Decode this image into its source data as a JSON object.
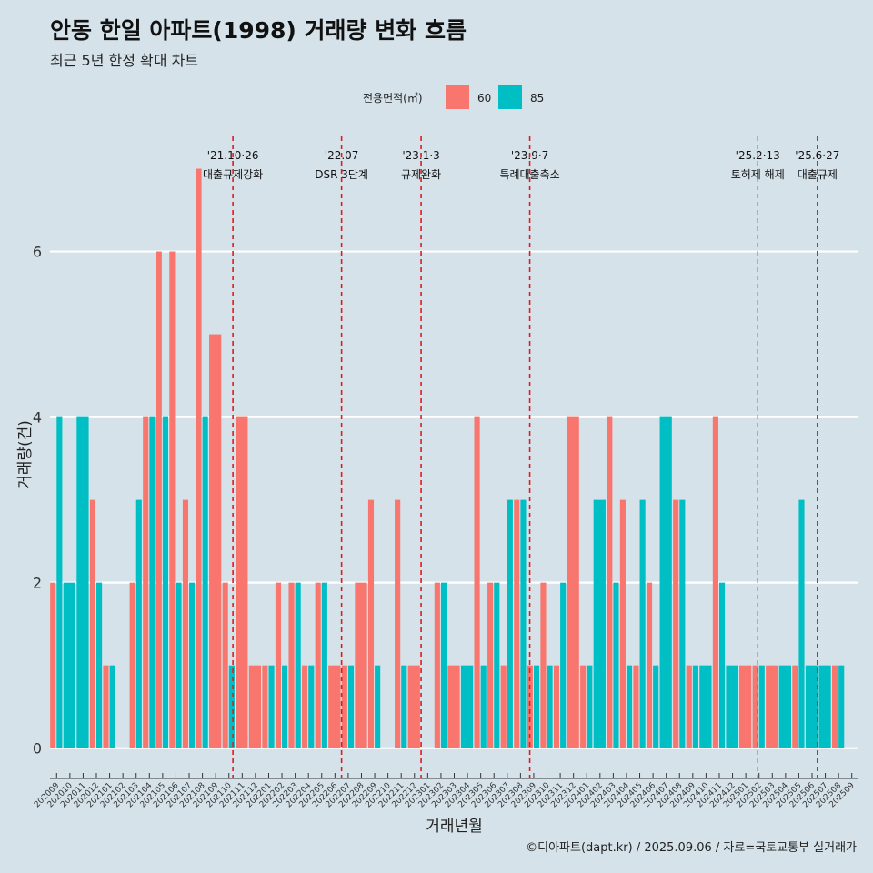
{
  "chart_data": {
    "type": "bar",
    "title": "안동 한일 아파트(1998) 거래량 변화 흐름",
    "subtitle": "최근 5년 한정 확대 차트",
    "xlabel": "거래년월",
    "ylabel": "거래량(건)",
    "ylim": [
      -0.3,
      7.5
    ],
    "yticks": [
      0,
      2,
      4,
      6
    ],
    "legend_title": "전용면적(㎡)",
    "series": [
      {
        "name": "60",
        "color": "#f8766d"
      },
      {
        "name": "85",
        "color": "#00bfc4"
      }
    ],
    "months": [
      "202009",
      "202010",
      "202011",
      "202012",
      "202101",
      "202102",
      "202103",
      "202104",
      "202105",
      "202106",
      "202107",
      "202108",
      "202109",
      "202110",
      "202111",
      "202112",
      "202201",
      "202202",
      "202203",
      "202204",
      "202205",
      "202206",
      "202207",
      "202208",
      "202209",
      "202210",
      "202211",
      "202212",
      "202301",
      "202302",
      "202303",
      "202304",
      "202305",
      "202306",
      "202307",
      "202308",
      "202309",
      "202310",
      "202311",
      "202312",
      "202401",
      "202402",
      "202403",
      "202404",
      "202405",
      "202406",
      "202407",
      "202408",
      "202409",
      "202410",
      "202411",
      "202412",
      "202501",
      "202502",
      "202503",
      "202504",
      "202505",
      "202506",
      "202507",
      "202508",
      "202509"
    ],
    "data": [
      {
        "month": "202009",
        "60": 2,
        "85": 4
      },
      {
        "month": "202010",
        "60": 0,
        "85": 2
      },
      {
        "month": "202011",
        "60": 0,
        "85": 4
      },
      {
        "month": "202012",
        "60": 3,
        "85": 2
      },
      {
        "month": "202101",
        "60": 1,
        "85": 1
      },
      {
        "month": "202103",
        "60": 2,
        "85": 3
      },
      {
        "month": "202104",
        "60": 4,
        "85": 4
      },
      {
        "month": "202105",
        "60": 6,
        "85": 4
      },
      {
        "month": "202106",
        "60": 6,
        "85": 2
      },
      {
        "month": "202107",
        "60": 3,
        "85": 2
      },
      {
        "month": "202108",
        "60": 7,
        "85": 4
      },
      {
        "month": "202109",
        "60": 5,
        "85": 0
      },
      {
        "month": "202110",
        "60": 2,
        "85": 1
      },
      {
        "month": "202111",
        "60": 4,
        "85": 0
      },
      {
        "month": "202112",
        "60": 1,
        "85": 0
      },
      {
        "month": "202201",
        "60": 1,
        "85": 1
      },
      {
        "month": "202202",
        "60": 2,
        "85": 1
      },
      {
        "month": "202203",
        "60": 2,
        "85": 2
      },
      {
        "month": "202204",
        "60": 1,
        "85": 1
      },
      {
        "month": "202205",
        "60": 2,
        "85": 2
      },
      {
        "month": "202206",
        "60": 1,
        "85": 0
      },
      {
        "month": "202207",
        "60": 1,
        "85": 1
      },
      {
        "month": "202208",
        "60": 2,
        "85": 0
      },
      {
        "month": "202209",
        "60": 3,
        "85": 1
      },
      {
        "month": "202211",
        "60": 3,
        "85": 1
      },
      {
        "month": "202212",
        "60": 1,
        "85": 0
      },
      {
        "month": "202302",
        "60": 2,
        "85": 2
      },
      {
        "month": "202303",
        "60": 1,
        "85": 0
      },
      {
        "month": "202304",
        "60": 0,
        "85": 1
      },
      {
        "month": "202305",
        "60": 4,
        "85": 1
      },
      {
        "month": "202306",
        "60": 2,
        "85": 2
      },
      {
        "month": "202307",
        "60": 1,
        "85": 3
      },
      {
        "month": "202308",
        "60": 3,
        "85": 3
      },
      {
        "month": "202309",
        "60": 1,
        "85": 1
      },
      {
        "month": "202310",
        "60": 2,
        "85": 1
      },
      {
        "month": "202311",
        "60": 1,
        "85": 2
      },
      {
        "month": "202312",
        "60": 4,
        "85": 0
      },
      {
        "month": "202401",
        "60": 1,
        "85": 1
      },
      {
        "month": "202402",
        "60": 0,
        "85": 3
      },
      {
        "month": "202403",
        "60": 4,
        "85": 2
      },
      {
        "month": "202404",
        "60": 3,
        "85": 1
      },
      {
        "month": "202405",
        "60": 1,
        "85": 3
      },
      {
        "month": "202406",
        "60": 2,
        "85": 1
      },
      {
        "month": "202407",
        "60": 0,
        "85": 4
      },
      {
        "month": "202408",
        "60": 3,
        "85": 3
      },
      {
        "month": "202409",
        "60": 1,
        "85": 1
      },
      {
        "month": "202410",
        "60": 0,
        "85": 1
      },
      {
        "month": "202411",
        "60": 4,
        "85": 2
      },
      {
        "month": "202412",
        "60": 0,
        "85": 1
      },
      {
        "month": "202501",
        "60": 1,
        "85": 0
      },
      {
        "month": "202502",
        "60": 1,
        "85": 1
      },
      {
        "month": "202503",
        "60": 1,
        "85": 0
      },
      {
        "month": "202504",
        "60": 0,
        "85": 1
      },
      {
        "month": "202505",
        "60": 1,
        "85": 3
      },
      {
        "month": "202506",
        "60": 0,
        "85": 1
      },
      {
        "month": "202507",
        "60": 0,
        "85": 1
      },
      {
        "month": "202508",
        "60": 1,
        "85": 1
      }
    ],
    "events": [
      {
        "month": "202110",
        "frac": 0.8,
        "date": "'21.10·26",
        "label": "대출규제강화",
        "small": false
      },
      {
        "month": "202207",
        "frac": 0.0,
        "date": "'22.07",
        "label": "DSR 3단계",
        "small": false
      },
      {
        "month": "202301",
        "frac": 0.0,
        "date": "'23.1·3",
        "label": "규제완화",
        "small": false
      },
      {
        "month": "202309",
        "frac": 0.2,
        "date": "'23.9·7",
        "label": "특례대출축소",
        "small": false
      },
      {
        "month": "202502",
        "frac": 0.4,
        "date": "'25.2·13",
        "label": "토허제 해제",
        "small": true
      },
      {
        "month": "202506",
        "frac": 0.9,
        "date": "'25.6·27",
        "label": "대출규제",
        "small": false
      }
    ]
  },
  "caption": "©디아파트(dapt.kr) / 2025.09.06 / 자료=국토교통부 실거래가"
}
